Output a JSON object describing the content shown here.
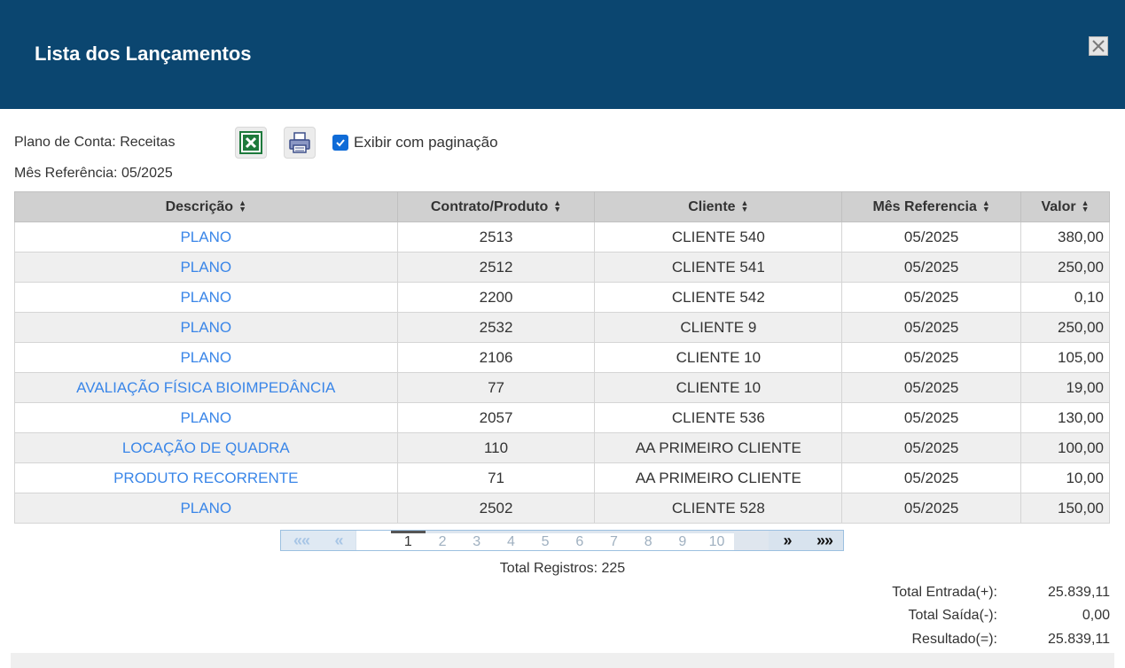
{
  "header": {
    "title": "Lista dos Lançamentos"
  },
  "info": {
    "plano_conta": "Plano de Conta: Receitas",
    "mes_referencia": "Mês Referência: 05/2025"
  },
  "toolbar": {
    "paginacao_label": "Exibir com paginação",
    "paginacao_checked": true
  },
  "table": {
    "columns": [
      "Descrição",
      "Contrato/Produto",
      "Cliente",
      "Mês Referencia",
      "Valor"
    ],
    "rows": [
      [
        "PLANO",
        "2513",
        "CLIENTE 540",
        "05/2025",
        "380,00"
      ],
      [
        "PLANO",
        "2512",
        "CLIENTE 541",
        "05/2025",
        "250,00"
      ],
      [
        "PLANO",
        "2200",
        "CLIENTE 542",
        "05/2025",
        "0,10"
      ],
      [
        "PLANO",
        "2532",
        "CLIENTE 9",
        "05/2025",
        "250,00"
      ],
      [
        "PLANO",
        "2106",
        "CLIENTE 10",
        "05/2025",
        "105,00"
      ],
      [
        "AVALIAÇÃO FÍSICA BIOIMPEDÂNCIA",
        "77",
        "CLIENTE 10",
        "05/2025",
        "19,00"
      ],
      [
        "PLANO",
        "2057",
        "CLIENTE 536",
        "05/2025",
        "130,00"
      ],
      [
        "LOCAÇÃO DE QUADRA",
        "110",
        "AA PRIMEIRO CLIENTE",
        "05/2025",
        "100,00"
      ],
      [
        "PRODUTO RECORRENTE",
        "71",
        "AA PRIMEIRO CLIENTE",
        "05/2025",
        "10,00"
      ],
      [
        "PLANO",
        "2502",
        "CLIENTE 528",
        "05/2025",
        "150,00"
      ]
    ]
  },
  "pager": {
    "pages": [
      "1",
      "2",
      "3",
      "4",
      "5",
      "6",
      "7",
      "8",
      "9",
      "10"
    ],
    "current": "1",
    "first": "«",
    "prev": "‹",
    "next": "»",
    "last": "»»"
  },
  "totals": {
    "registros": "Total Registros: 225",
    "entrada_label": "Total Entrada(+):",
    "entrada_value": "25.839,11",
    "saida_label": "Total Saída(-):",
    "saida_value": "0,00",
    "resultado_label": "Resultado(=):",
    "resultado_value": "25.839,11"
  },
  "colors": {
    "header_bg": "#0b4670",
    "link": "#3a86e8",
    "checkbox": "#0f6bd7"
  }
}
